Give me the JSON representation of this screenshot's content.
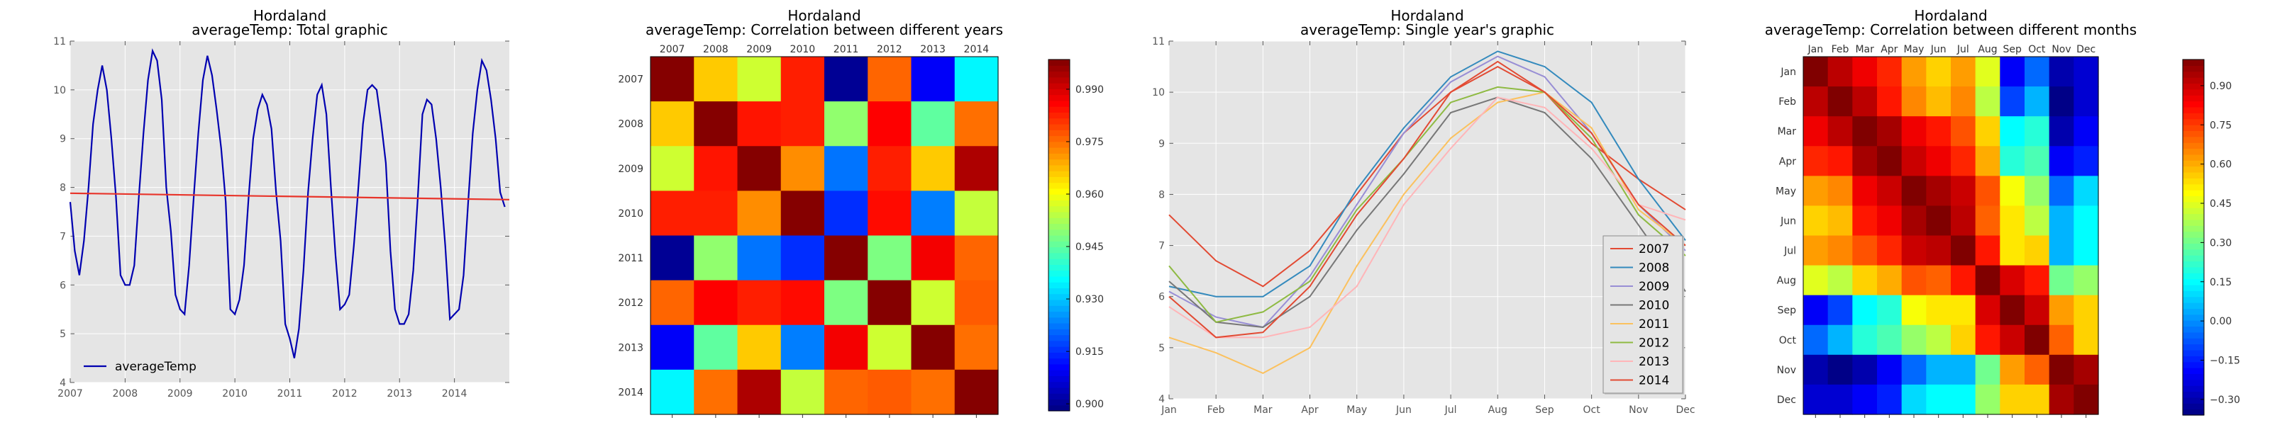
{
  "chart_data": [
    {
      "type": "line",
      "title": "Hordaland",
      "subtitle": "averageTemp: Total graphic",
      "xlabel": "",
      "ylabel": "",
      "x_ticks": [
        "2007",
        "2008",
        "2009",
        "2010",
        "2011",
        "2012",
        "2013",
        "2014"
      ],
      "x_range": [
        2007,
        2015
      ],
      "ylim": [
        4,
        11
      ],
      "y_ticks": [
        "4",
        "5",
        "6",
        "7",
        "8",
        "9",
        "10",
        "11"
      ],
      "grid": true,
      "legend_position": "lower-left",
      "series": [
        {
          "name": "averageTemp",
          "color": "#0000b0",
          "interval": "monthly",
          "start": "2007-01",
          "values": [
            7.7,
            6.7,
            6.2,
            6.9,
            8.0,
            9.3,
            10.0,
            10.5,
            10.0,
            9.0,
            7.8,
            6.2,
            6.0,
            6.0,
            6.4,
            7.8,
            9.1,
            10.2,
            10.8,
            10.6,
            9.8,
            8.0,
            7.1,
            5.8,
            5.5,
            5.4,
            6.4,
            7.8,
            9.1,
            10.2,
            10.7,
            10.3,
            9.6,
            8.8,
            7.7,
            5.5,
            5.4,
            5.7,
            6.4,
            7.8,
            9.0,
            9.6,
            9.9,
            9.7,
            9.2,
            7.9,
            6.9,
            5.2,
            4.9,
            4.5,
            5.1,
            6.3,
            7.9,
            9.0,
            9.9,
            10.1,
            9.5,
            8.0,
            6.6,
            5.5,
            5.6,
            5.8,
            6.8,
            8.0,
            9.3,
            10.0,
            10.1,
            10.0,
            9.3,
            8.5,
            6.7,
            5.5,
            5.2,
            5.2,
            5.4,
            6.3,
            7.8,
            9.5,
            9.8,
            9.7,
            9.0,
            8.0,
            6.8,
            5.3,
            5.4,
            5.5,
            6.2,
            7.7,
            9.1,
            10.0,
            10.6,
            10.4,
            9.8,
            9.0,
            7.9,
            7.6
          ]
        },
        {
          "name": "",
          "color": "#e8342a",
          "kind": "trend",
          "values": [
            7.88,
            7.75
          ]
        }
      ]
    },
    {
      "type": "heatmap",
      "title": "Hordaland",
      "subtitle": "averageTemp: Correlation between different years",
      "x_labels": [
        "2007",
        "2008",
        "2009",
        "2010",
        "2011",
        "2012",
        "2013",
        "2014"
      ],
      "y_labels": [
        "2007",
        "2008",
        "2009",
        "2010",
        "2011",
        "2012",
        "2013",
        "2014"
      ],
      "colorbar_range": [
        0.898,
        0.9985
      ],
      "colorbar_ticks": [
        "0.900",
        "0.915",
        "0.930",
        "0.945",
        "0.960",
        "0.975",
        "0.990"
      ],
      "colorbar_tick_values": [
        0.9,
        0.915,
        0.93,
        0.945,
        0.96,
        0.975,
        0.99
      ],
      "matrix": [
        [
          0.998,
          0.966,
          0.956,
          0.983,
          0.9,
          0.976,
          0.91,
          0.935
        ],
        [
          0.966,
          0.998,
          0.984,
          0.983,
          0.95,
          0.986,
          0.945,
          0.975
        ],
        [
          0.956,
          0.984,
          0.998,
          0.972,
          0.922,
          0.983,
          0.966,
          0.994
        ],
        [
          0.983,
          0.983,
          0.972,
          0.998,
          0.915,
          0.985,
          0.923,
          0.955
        ],
        [
          0.9,
          0.95,
          0.922,
          0.915,
          0.998,
          0.948,
          0.987,
          0.976
        ],
        [
          0.976,
          0.986,
          0.983,
          0.985,
          0.948,
          0.998,
          0.956,
          0.977
        ],
        [
          0.91,
          0.945,
          0.966,
          0.923,
          0.987,
          0.956,
          0.998,
          0.975
        ],
        [
          0.935,
          0.975,
          0.994,
          0.955,
          0.976,
          0.977,
          0.975,
          0.998
        ]
      ]
    },
    {
      "type": "line",
      "title": "Hordaland",
      "subtitle": "averageTemp: Single year's graphic",
      "xlabel": "",
      "ylabel": "",
      "categories": [
        "Jan",
        "Feb",
        "Mar",
        "Apr",
        "May",
        "Jun",
        "Jul",
        "Aug",
        "Sep",
        "Oct",
        "Nov",
        "Dec"
      ],
      "ylim": [
        4,
        11
      ],
      "y_ticks": [
        "4",
        "5",
        "6",
        "7",
        "8",
        "9",
        "10",
        "11"
      ],
      "grid": true,
      "legend_position": "lower-right",
      "series": [
        {
          "name": "2007",
          "color": "#e24a33",
          "values": [
            7.6,
            6.7,
            6.2,
            6.9,
            8.0,
            9.2,
            10.0,
            10.5,
            10.0,
            9.0,
            8.3,
            7.7
          ]
        },
        {
          "name": "2008",
          "color": "#348abd",
          "values": [
            6.2,
            6.0,
            6.0,
            6.6,
            8.1,
            9.3,
            10.3,
            10.8,
            10.5,
            9.8,
            8.3,
            7.1
          ]
        },
        {
          "name": "2009",
          "color": "#988ed5",
          "values": [
            6.1,
            5.6,
            5.4,
            6.4,
            7.8,
            9.2,
            10.2,
            10.7,
            10.3,
            9.2,
            7.8,
            6.9
          ]
        },
        {
          "name": "2010",
          "color": "#777777",
          "values": [
            6.3,
            5.5,
            5.4,
            6.0,
            7.3,
            8.4,
            9.6,
            9.9,
            9.6,
            8.7,
            7.4,
            6.1
          ]
        },
        {
          "name": "2011",
          "color": "#fbc15e",
          "values": [
            5.2,
            4.9,
            4.5,
            5.0,
            6.6,
            8.0,
            9.1,
            9.8,
            10.0,
            9.3,
            7.7,
            7.0
          ]
        },
        {
          "name": "2012",
          "color": "#8eba42",
          "values": [
            6.6,
            5.5,
            5.7,
            6.3,
            7.7,
            8.7,
            9.8,
            10.1,
            10.0,
            9.1,
            7.6,
            6.8
          ]
        },
        {
          "name": "2013",
          "color": "#ffb5b8",
          "values": [
            5.8,
            5.2,
            5.2,
            5.4,
            6.2,
            7.8,
            8.9,
            9.9,
            9.7,
            8.9,
            7.8,
            7.5
          ]
        },
        {
          "name": "2014",
          "color": "#e24a33",
          "values": [
            6.0,
            5.2,
            5.3,
            6.2,
            7.6,
            8.7,
            10.0,
            10.6,
            10.0,
            9.2,
            7.8,
            7.0
          ]
        }
      ]
    },
    {
      "type": "heatmap",
      "title": "Hordaland",
      "subtitle": "averageTemp: Correlation between different months",
      "x_labels": [
        "Jan",
        "Feb",
        "Mar",
        "Apr",
        "May",
        "Jun",
        "Jul",
        "Aug",
        "Sep",
        "Oct",
        "Nov",
        "Dec"
      ],
      "y_labels": [
        "Jan",
        "Feb",
        "Mar",
        "Apr",
        "May",
        "Jun",
        "Jul",
        "Aug",
        "Sep",
        "Oct",
        "Nov",
        "Dec"
      ],
      "colorbar_range": [
        -0.36,
        1.0
      ],
      "colorbar_ticks": [
        "−0.30",
        "−0.15",
        "0.00",
        "0.15",
        "0.30",
        "0.45",
        "0.60",
        "0.75",
        "0.90"
      ],
      "colorbar_tick_values": [
        -0.3,
        -0.15,
        0.0,
        0.15,
        0.3,
        0.45,
        0.6,
        0.75,
        0.9
      ],
      "matrix": [
        [
          1.0,
          0.92,
          0.85,
          0.78,
          0.62,
          0.55,
          0.62,
          0.45,
          -0.2,
          -0.05,
          -0.3,
          -0.25
        ],
        [
          0.92,
          1.0,
          0.92,
          0.8,
          0.65,
          0.58,
          0.65,
          0.4,
          -0.1,
          0.05,
          -0.35,
          -0.25
        ],
        [
          0.85,
          0.92,
          1.0,
          0.95,
          0.85,
          0.8,
          0.72,
          0.55,
          0.15,
          0.2,
          -0.3,
          -0.2
        ],
        [
          0.78,
          0.8,
          0.95,
          1.0,
          0.9,
          0.85,
          0.78,
          0.6,
          0.2,
          0.25,
          -0.2,
          -0.15
        ],
        [
          0.62,
          0.65,
          0.85,
          0.9,
          1.0,
          0.95,
          0.9,
          0.72,
          0.48,
          0.35,
          -0.05,
          0.1
        ],
        [
          0.55,
          0.58,
          0.8,
          0.85,
          0.95,
          1.0,
          0.92,
          0.7,
          0.52,
          0.4,
          0.05,
          0.15
        ],
        [
          0.62,
          0.65,
          0.72,
          0.78,
          0.9,
          0.92,
          1.0,
          0.8,
          0.52,
          0.55,
          0.05,
          0.15
        ],
        [
          0.45,
          0.4,
          0.55,
          0.6,
          0.72,
          0.7,
          0.8,
          1.0,
          0.88,
          0.8,
          0.3,
          0.35
        ],
        [
          -0.2,
          -0.1,
          0.15,
          0.2,
          0.48,
          0.52,
          0.52,
          0.88,
          1.0,
          0.9,
          0.62,
          0.55
        ],
        [
          -0.05,
          0.05,
          0.2,
          0.25,
          0.35,
          0.4,
          0.55,
          0.8,
          0.9,
          1.0,
          0.7,
          0.55
        ],
        [
          -0.3,
          -0.35,
          -0.3,
          -0.2,
          -0.05,
          0.05,
          0.05,
          0.3,
          0.62,
          0.7,
          1.0,
          0.95
        ],
        [
          -0.25,
          -0.25,
          -0.2,
          -0.15,
          0.1,
          0.15,
          0.15,
          0.35,
          0.55,
          0.55,
          0.95,
          1.0
        ]
      ]
    }
  ]
}
